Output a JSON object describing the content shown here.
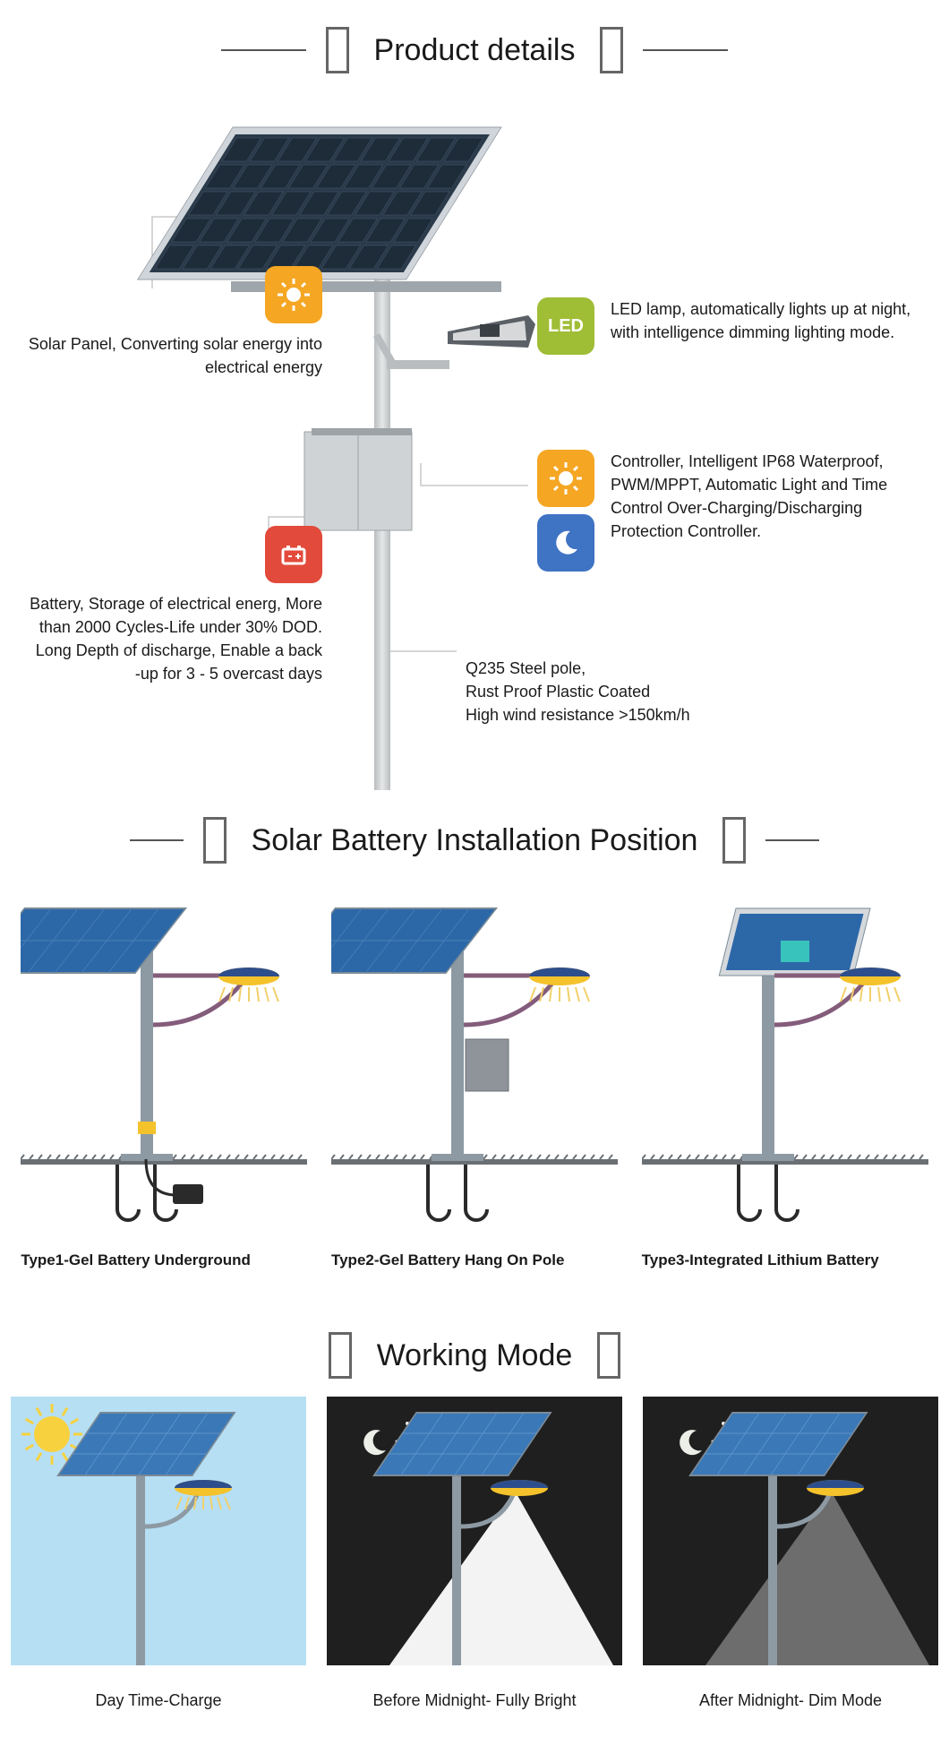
{
  "sections": {
    "details_title": "Product details",
    "install_title": "Solar Battery Installation Position",
    "mode_title": "Working Mode"
  },
  "components": {
    "solar_panel": {
      "icon_bg": "#f5a623",
      "text": "Solar Panel,  Converting solar energy into electrical energy"
    },
    "led_lamp": {
      "icon_bg": "#9fbd35",
      "icon_label": "LED",
      "text": "LED lamp, automatically lights up at night, with intelligence dimming lighting mode."
    },
    "controller": {
      "icon_sun_bg": "#f5a623",
      "icon_moon_bg": "#3f73c4",
      "text": "Controller, Intelligent IP68 Waterproof, PWM/MPPT, Automatic Light and Time Control Over-Charging/Discharging Protection Controller."
    },
    "battery": {
      "icon_bg": "#e24a3b",
      "text": "Battery,  Storage of electrical energ, More than 2000 Cycles-Life under 30% DOD. Long Depth of discharge, Enable a back -up for 3 - 5 overcast days"
    },
    "pole": {
      "text": "Q235 Steel pole,\nRust Proof Plastic Coated\nHigh wind resistance >150km/h"
    }
  },
  "product_diagram": {
    "panel": {
      "color_dark": "#2b3a4a",
      "color_frame": "#cfd5da",
      "cell_color": "#1e2c3a"
    },
    "pole": {
      "color": "#b9bdbf",
      "gradient_hi": "#e5e7e8"
    },
    "lamp": {
      "body": "#5a6066",
      "face": "#d6d8da"
    },
    "box": {
      "fill": "#cfd3d6",
      "edge": "#9ea3a7"
    },
    "leader_color": "#c9c9c9"
  },
  "install_types": [
    {
      "label": "Type1-Gel Battery Underground",
      "variant": "underground"
    },
    {
      "label": "Type2-Gel Battery Hang On Pole",
      "variant": "hang"
    },
    {
      "label": "Type3-Integrated Lithium Battery",
      "variant": "integrated"
    }
  ],
  "install_style": {
    "panel_fill": "#2c68a8",
    "panel_frame": "#7a8a97",
    "panel_grid": "#4a7fb6",
    "pole": "#8d9aa4",
    "arm": "#845c7b",
    "lamp_top": "#2d4e8c",
    "lamp_bottom": "#f4c22b",
    "ray": "#f2d06a",
    "ground": "#6a6f74",
    "bolt": "#2a2a2a",
    "box": "#8e949a"
  },
  "modes": [
    {
      "label": "Day Time-Charge",
      "bg": "#b6dff4",
      "sky": "day"
    },
    {
      "label": "Before Midnight- Fully Bright",
      "bg": "#1f1f1f",
      "sky": "night",
      "beam_opacity": 0.95
    },
    {
      "label": "After Midnight- Dim Mode",
      "bg": "#1f1f1f",
      "sky": "night",
      "beam_opacity": 0.35
    }
  ],
  "mode_style": {
    "panel": "#3a78b8",
    "panel_grid": "#5f95c9",
    "pole": "#8d9aa4",
    "lamp_top": "#2d4e8c",
    "lamp_bottom": "#f4c22b",
    "sun": "#f7d23e",
    "moon": "#eceee8",
    "star": "#eceee8",
    "beam": "#ffffff"
  }
}
